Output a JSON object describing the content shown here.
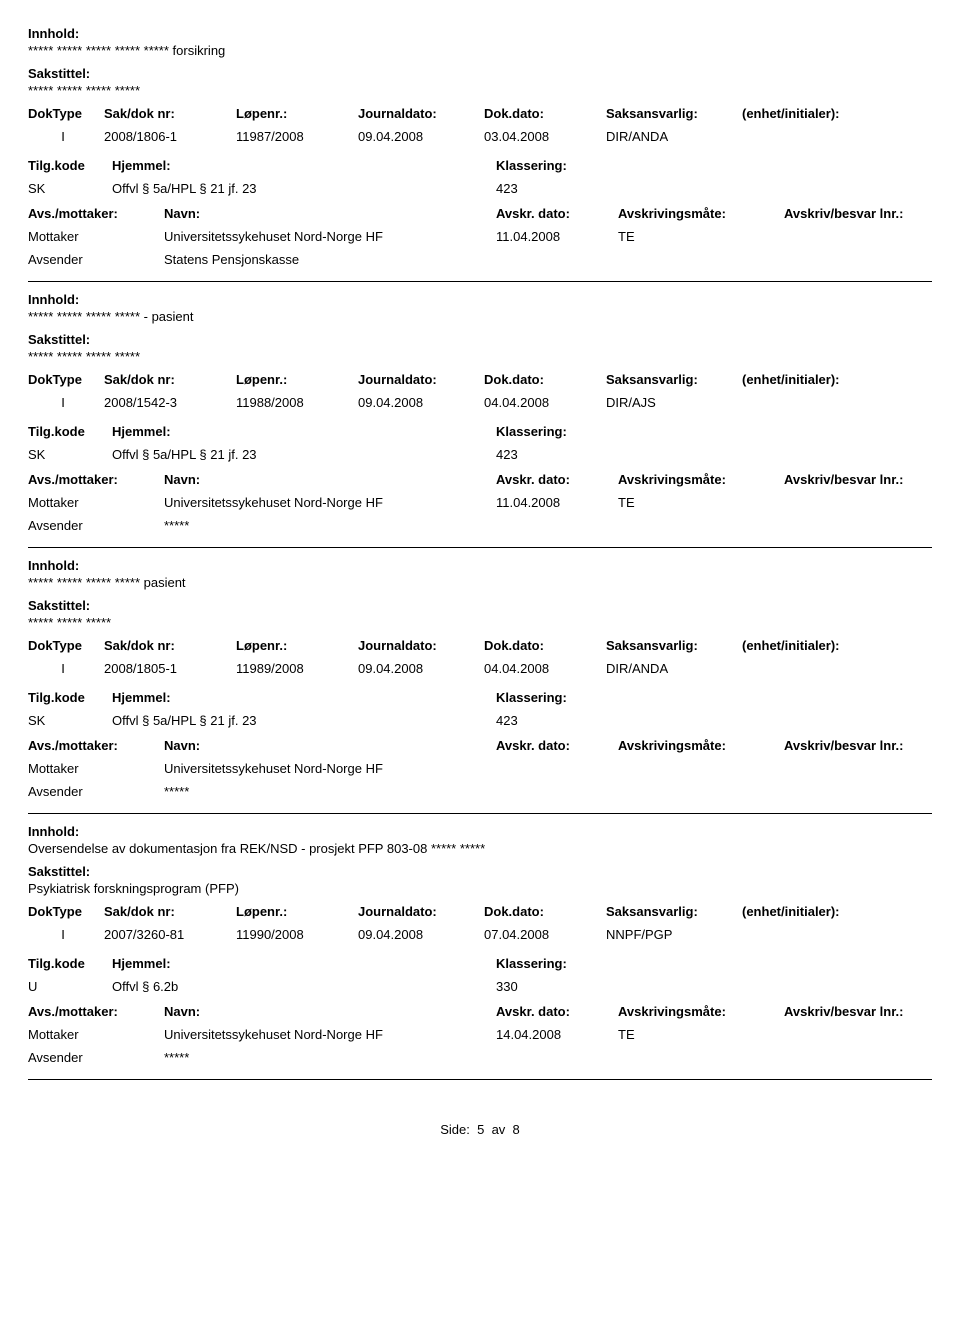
{
  "labels": {
    "innhold": "Innhold:",
    "sakstittel": "Sakstittel:",
    "doktype": "DokType",
    "sakdok": "Sak/dok nr:",
    "lopenr": "Løpenr.:",
    "journaldato": "Journaldato:",
    "dokdato": "Dok.dato:",
    "saksansvarlig": "Saksansvarlig:",
    "enhet": "(enhet/initialer):",
    "tilgkode": "Tilg.kode",
    "hjemmel": "Hjemmel:",
    "klassering": "Klassering:",
    "avsmottaker": "Avs./mottaker:",
    "navn": "Navn:",
    "avskrdato": "Avskr. dato:",
    "avskrmate": "Avskrivingsmåte:",
    "avskrlnr": "Avskriv/besvar lnr.:",
    "mottaker": "Mottaker",
    "avsender": "Avsender"
  },
  "entries": [
    {
      "innhold": "***** ***** ***** ***** ***** forsikring",
      "sakstittel": "***** ***** ***** *****",
      "doktype": "I",
      "sakdok": "2008/1806-1",
      "lopenr": "11987/2008",
      "journaldato": "09.04.2008",
      "dokdato": "03.04.2008",
      "saksansvarlig": "DIR/ANDA",
      "tilgkode": "SK",
      "hjemmel": "Offvl § 5a/HPL § 21 jf. 23",
      "klassering": "423",
      "mottaker_navn": "Universitetssykehuset Nord-Norge HF",
      "avskrdato": "11.04.2008",
      "avskrmate": "TE",
      "avsender_navn": "Statens Pensjonskasse"
    },
    {
      "innhold": "***** ***** ***** ***** - pasient",
      "sakstittel": "***** ***** ***** *****",
      "doktype": "I",
      "sakdok": "2008/1542-3",
      "lopenr": "11988/2008",
      "journaldato": "09.04.2008",
      "dokdato": "04.04.2008",
      "saksansvarlig": "DIR/AJS",
      "tilgkode": "SK",
      "hjemmel": "Offvl § 5a/HPL § 21 jf. 23",
      "klassering": "423",
      "mottaker_navn": "Universitetssykehuset Nord-Norge HF",
      "avskrdato": "11.04.2008",
      "avskrmate": "TE",
      "avsender_navn": "*****"
    },
    {
      "innhold": "***** ***** ***** ***** pasient",
      "sakstittel": "***** ***** *****",
      "doktype": "I",
      "sakdok": "2008/1805-1",
      "lopenr": "11989/2008",
      "journaldato": "09.04.2008",
      "dokdato": "04.04.2008",
      "saksansvarlig": "DIR/ANDA",
      "tilgkode": "SK",
      "hjemmel": "Offvl § 5a/HPL § 21 jf. 23",
      "klassering": "423",
      "mottaker_navn": "Universitetssykehuset Nord-Norge HF",
      "avskrdato": "",
      "avskrmate": "",
      "avsender_navn": "*****"
    },
    {
      "innhold": "Oversendelse av dokumentasjon fra REK/NSD - prosjekt PFP 803-08 ***** *****",
      "sakstittel": "Psykiatrisk forskningsprogram (PFP)",
      "doktype": "I",
      "sakdok": "2007/3260-81",
      "lopenr": "11990/2008",
      "journaldato": "09.04.2008",
      "dokdato": "07.04.2008",
      "saksansvarlig": "NNPF/PGP",
      "tilgkode": "U",
      "hjemmel": "Offvl § 6.2b",
      "klassering": "330",
      "mottaker_navn": "Universitetssykehuset Nord-Norge HF",
      "avskrdato": "14.04.2008",
      "avskrmate": "TE",
      "avsender_navn": "*****"
    }
  ],
  "pager": {
    "prefix": "Side:",
    "current": "5",
    "sep": "av",
    "total": "8"
  }
}
